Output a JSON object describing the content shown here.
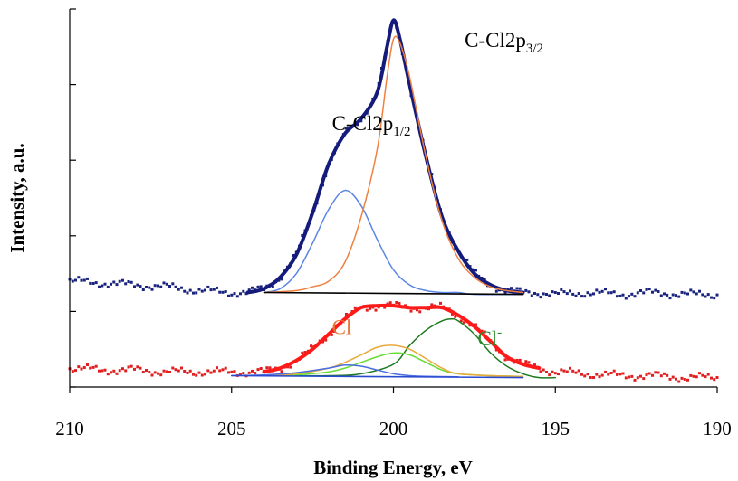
{
  "chart_data": {
    "type": "line",
    "title": "",
    "xlabel": "Binding Energy, eV",
    "ylabel": "Intensity, a.u.",
    "xlim": [
      210,
      190
    ],
    "x_reversed": true,
    "ylim": [
      0,
      100
    ],
    "x_ticks": [
      "210",
      "205",
      "200",
      "195",
      "190"
    ],
    "y_ticks_unlabeled": 5,
    "grid": false,
    "legend": "none",
    "annotations": [
      {
        "id": "cc_p12",
        "base": "C-Cl2p",
        "sub": "1/2",
        "color": "#000000",
        "x": 201.9,
        "y": 68
      },
      {
        "id": "cc_p32",
        "base": "C-Cl2p",
        "sub": "3/2",
        "color": "#000000",
        "x": 197.8,
        "y": 90
      },
      {
        "id": "cl",
        "base": "Cl",
        "sub": "",
        "color": "#e5773a",
        "x": 201.9,
        "y": 14
      },
      {
        "id": "cl_minus",
        "base": "Cl",
        "sup": "-",
        "color": "#2a8a2a",
        "x": 197.4,
        "y": 11
      }
    ],
    "series": [
      {
        "role": "upper-raw",
        "color": "#1a237e",
        "style": "points",
        "x": [
          210,
          209,
          208,
          207,
          206,
          205,
          204.5,
          204,
          203.5,
          203,
          202.5,
          202,
          201.5,
          201,
          200.5,
          200.2,
          200,
          199.8,
          199.5,
          199,
          198.5,
          198,
          197.5,
          197,
          196.5,
          196,
          195.5,
          195,
          194,
          193,
          192,
          191,
          190
        ],
        "y": [
          28,
          27.5,
          27,
          26.5,
          25.5,
          25,
          25,
          26,
          29,
          35,
          46,
          59,
          67,
          71,
          78,
          90,
          97,
          92,
          80,
          61,
          45,
          36,
          30,
          27,
          25.5,
          25,
          25,
          24.5,
          25,
          24.5,
          25,
          24.5,
          24.5
        ]
      },
      {
        "role": "upper-envelope",
        "color": "#141b7a",
        "x": [
          204.5,
          204,
          203.5,
          203,
          202.5,
          202,
          201.5,
          201,
          200.5,
          200.2,
          200,
          199.8,
          199.5,
          199,
          198.5,
          198,
          197.5,
          197,
          196.5,
          196
        ],
        "y": [
          25,
          26,
          29,
          35,
          46,
          59,
          67,
          71,
          78,
          90,
          97,
          92,
          80,
          61,
          45,
          36,
          30,
          27,
          25.5,
          25
        ]
      },
      {
        "role": "C-Cl2p1/2",
        "color": "#5b86e5",
        "x": [
          204,
          203.5,
          203,
          202.5,
          202,
          201.5,
          201,
          200.5,
          200,
          199.5,
          199,
          198.5,
          198,
          197.5,
          196
        ],
        "y": [
          25,
          26,
          30,
          38,
          47,
          52,
          48,
          39,
          31,
          27,
          25.5,
          25,
          25,
          24.5,
          24.5
        ]
      },
      {
        "role": "C-Cl2p3/2",
        "color": "#ef8040",
        "x": [
          204,
          203,
          202.5,
          202,
          201.5,
          201,
          200.5,
          200.2,
          200,
          199.8,
          199.5,
          199,
          198.5,
          198,
          197.5,
          197,
          196.5,
          196
        ],
        "y": [
          25,
          25.5,
          26.5,
          28,
          33,
          45,
          63,
          82,
          92,
          91,
          82,
          61,
          44,
          34,
          29,
          26.5,
          25.5,
          25
        ]
      },
      {
        "role": "upper-baseline",
        "color": "#000000",
        "x": [
          204,
          196
        ],
        "y": [
          25,
          24.5
        ]
      },
      {
        "role": "lower-raw",
        "color": "#e02020",
        "style": "points",
        "x": [
          210,
          209,
          208,
          207,
          206,
          205,
          204,
          203.5,
          203,
          202.5,
          202,
          201.5,
          201,
          200.5,
          200,
          199.5,
          199,
          198.5,
          198,
          197.5,
          197,
          196.5,
          196,
          195.5,
          195,
          194,
          193,
          192,
          191,
          190
        ],
        "y": [
          5,
          4.5,
          4.5,
          4,
          4,
          4,
          4,
          5,
          7,
          10,
          14,
          18,
          21,
          21.5,
          21.5,
          21,
          21,
          21,
          19,
          16,
          12,
          8,
          6,
          5,
          4,
          3.5,
          3,
          3,
          2.5,
          2.5
        ]
      },
      {
        "role": "lower-envelope",
        "color": "#ff1a1a",
        "x": [
          204,
          203.5,
          203,
          202.5,
          202,
          201.5,
          201,
          200.5,
          200,
          199.5,
          199,
          198.5,
          198,
          197.5,
          197,
          196.5,
          196,
          195.5
        ],
        "y": [
          4,
          5,
          7,
          10,
          14,
          18,
          21,
          21.5,
          21.5,
          21,
          21,
          21,
          19,
          16,
          12,
          8,
          6,
          5
        ]
      },
      {
        "role": "Cl-",
        "color": "#1e7a1e",
        "x": [
          204,
          202,
          201,
          200,
          199.5,
          199,
          198.5,
          198.2,
          198,
          197.5,
          197,
          196.5,
          196,
          195.5,
          195
        ],
        "y": [
          3,
          3,
          3.5,
          6,
          11,
          15,
          17.5,
          18,
          17.5,
          14,
          9,
          5.5,
          3.5,
          2.5,
          2.5
        ]
      },
      {
        "role": "Cl-light",
        "color": "#66dd33",
        "x": [
          204,
          203,
          202,
          201.5,
          201,
          200.5,
          200,
          199.5,
          199,
          198.5,
          198,
          197,
          196
        ],
        "y": [
          3,
          3.2,
          4,
          5,
          6.5,
          8,
          9,
          8.5,
          6.5,
          4.5,
          3.5,
          3,
          2.8
        ]
      },
      {
        "role": "Cl",
        "color": "#e8a83a",
        "x": [
          204,
          203,
          202,
          201.5,
          201,
          200.5,
          200,
          199.5,
          199,
          198.5,
          198,
          197,
          196
        ],
        "y": [
          3,
          3.5,
          5,
          6.5,
          8.5,
          10.5,
          11,
          10,
          7.5,
          5,
          3.5,
          3,
          2.8
        ]
      },
      {
        "role": "lower-blue-component",
        "color": "#4a6ee0",
        "x": [
          205,
          204,
          203,
          202,
          201.5,
          201,
          200.5,
          200,
          199.5,
          199,
          198
        ],
        "y": [
          3,
          3.2,
          3.8,
          5,
          5.8,
          5.5,
          4.5,
          3.5,
          3,
          2.8,
          2.7
        ]
      },
      {
        "role": "lower-baseline",
        "color": "#2a4bd0",
        "x": [
          205,
          196
        ],
        "y": [
          3,
          2.5
        ]
      }
    ]
  }
}
